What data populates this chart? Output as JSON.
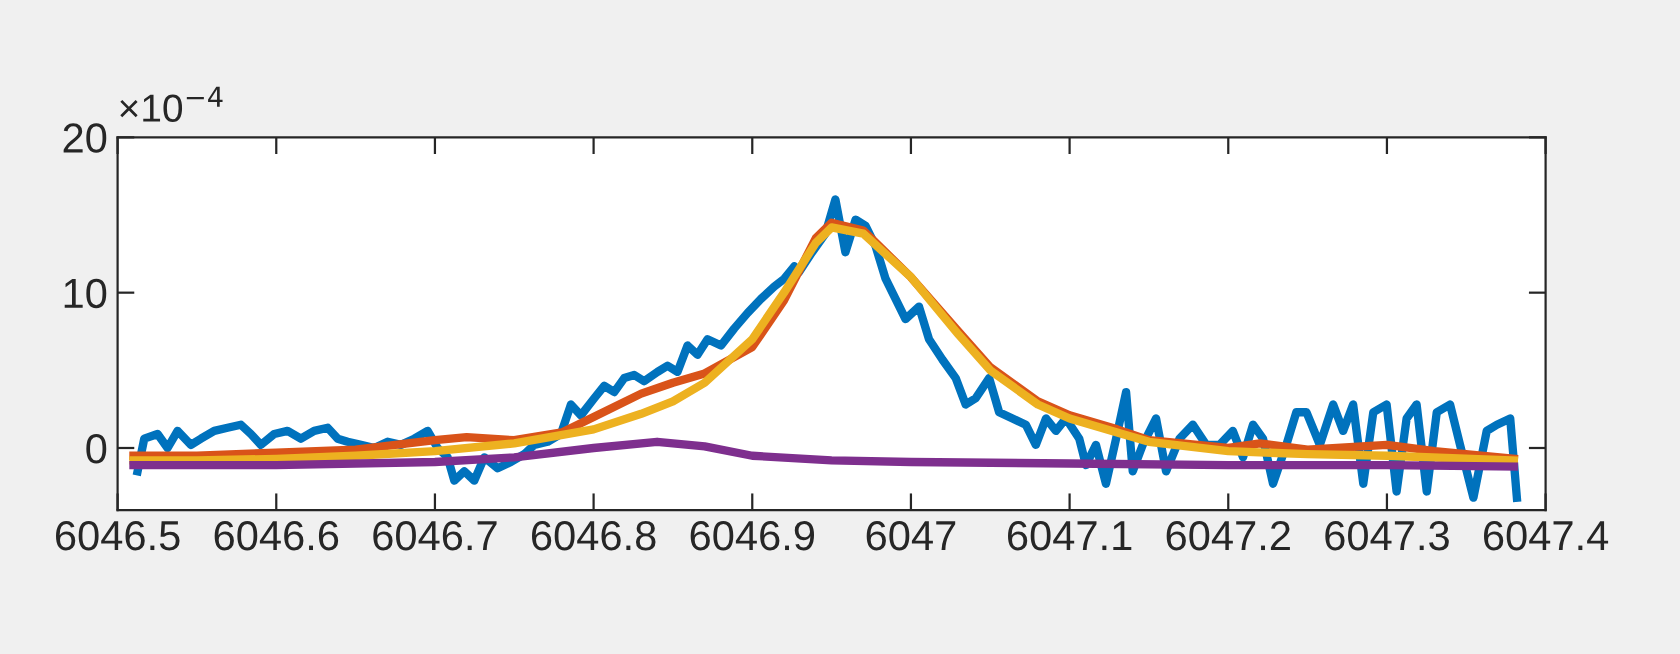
{
  "chart_data": {
    "type": "line",
    "annotations": [
      "×10$^{−4}$"
    ],
    "xlim": [
      6046.5,
      6047.4
    ],
    "xticks": [
      6046.5,
      6046.6,
      6046.7,
      6046.8,
      6046.9,
      6047,
      6047.1,
      6047.2,
      6047.3,
      6047.4
    ],
    "ylim": [
      -4,
      20
    ],
    "yticks": [
      0,
      10,
      20
    ],
    "grid": false,
    "legend": false,
    "line_style": "solid",
    "series": [
      {
        "color": "#0072bd",
        "x": [
          6046.5126,
          6046.5168,
          6046.5252,
          6046.5315,
          6046.5378,
          6046.5462,
          6046.5525,
          6046.5609,
          6046.5693,
          6046.5777,
          6046.584,
          6046.5903,
          6046.5987,
          6046.6071,
          6046.6155,
          6046.6239,
          6046.6324,
          6046.6387,
          6046.645,
          6046.6534,
          6046.6618,
          6046.6702,
          6046.6786,
          6046.687,
          6046.6954,
          6046.7017,
          6046.708,
          6046.7122,
          6046.7185,
          6046.7248,
          6046.7311,
          6046.7395,
          6046.7479,
          6046.7563,
          6046.7626,
          6046.771,
          6046.7794,
          6046.7857,
          6046.792,
          6046.8004,
          6046.8067,
          6046.813,
          6046.8193,
          6046.8256,
          6046.8319,
          6046.8403,
          6046.8466,
          6046.8529,
          6046.8592,
          6046.8655,
          6046.8718,
          6046.8803,
          6046.8887,
          6046.8971,
          6046.9055,
          6046.9139,
          6046.9202,
          6046.9265,
          6046.9293,
          6046.9377,
          6046.9461,
          6046.9524,
          6046.9587,
          6046.9651,
          6046.9714,
          6046.9777,
          6046.984,
          6046.9903,
          6046.9966,
          6047.0051,
          6047.0114,
          6047.0198,
          6047.0282,
          6047.0345,
          6047.0408,
          6047.0493,
          6047.0556,
          6047.064,
          6047.0724,
          6047.0787,
          6047.0851,
          6047.0914,
          6047.0977,
          6047.1061,
          6047.1103,
          6047.1166,
          6047.1229,
          6047.1293,
          6047.1356,
          6047.1398,
          6047.1461,
          6047.1545,
          6047.1608,
          6047.1693,
          6047.1777,
          6047.1861,
          6047.1945,
          6047.2029,
          6047.2093,
          6047.2156,
          6047.2219,
          6047.2282,
          6047.2366,
          6047.2429,
          6047.2493,
          6047.2577,
          6047.2661,
          6047.2724,
          6047.2787,
          6047.2851,
          6047.2914,
          6047.2998,
          6047.3061,
          6047.3124,
          6047.3187,
          6047.3251,
          6047.3314,
          6047.3398,
          6047.3461,
          6047.3545,
          6047.3629,
          6047.3693,
          6047.3777,
          6047.3819
        ],
        "values": [
          -1.5,
          0.6,
          0.9,
          0,
          1.1,
          0.2,
          0.6,
          1.1,
          1.3,
          1.5,
          0.9,
          0.2,
          0.9,
          1.1,
          0.6,
          1.1,
          1.3,
          0.6,
          0.4,
          0.2,
          0,
          0.4,
          0.2,
          0.6,
          1.1,
          0,
          -0.6,
          -2.1,
          -1.5,
          -2.1,
          -0.6,
          -1.3,
          -0.9,
          -0.4,
          0.2,
          0.4,
          0.9,
          2.8,
          2.1,
          3.2,
          4.0,
          3.6,
          4.5,
          4.7,
          4.3,
          4.9,
          5.3,
          4.9,
          6.6,
          6.0,
          7.0,
          6.6,
          7.7,
          8.7,
          9.6,
          10.4,
          10.9,
          11.7,
          11.3,
          12.6,
          13.8,
          16.0,
          12.6,
          14.7,
          14.3,
          13.0,
          10.9,
          9.6,
          8.3,
          9.1,
          7.0,
          5.7,
          4.5,
          2.8,
          3.2,
          4.5,
          2.3,
          1.9,
          1.5,
          0.2,
          1.9,
          1.1,
          1.9,
          0.6,
          -1.1,
          0.2,
          -2.3,
          0.6,
          3.6,
          -1.5,
          0.2,
          1.9,
          -1.5,
          0.6,
          1.5,
          0.2,
          0.2,
          1.1,
          -0.6,
          1.5,
          0.6,
          -2.3,
          0.2,
          2.3,
          2.3,
          0.2,
          2.8,
          1.1,
          2.8,
          -2.3,
          2.3,
          2.8,
          -2.8,
          1.9,
          2.8,
          -2.8,
          2.3,
          2.8,
          0.2,
          -3.2,
          1.1,
          1.5,
          1.9,
          -3.2
        ]
      },
      {
        "color": "#d95319",
        "x": [
          6046.51,
          6046.55,
          6046.6,
          6046.65,
          6046.7,
          6046.72,
          6046.75,
          6046.78,
          6046.8,
          6046.83,
          6046.85,
          6046.87,
          6046.9,
          6046.92,
          6046.94,
          6046.95,
          6046.97,
          6047.0,
          6047.03,
          6047.05,
          6047.08,
          6047.1,
          6047.13,
          6047.15,
          6047.2,
          6047.22,
          6047.25,
          6047.3,
          6047.33,
          6047.38
        ],
        "values": [
          -0.5,
          -0.5,
          -0.3,
          -0.1,
          0.5,
          0.7,
          0.5,
          1.0,
          2.0,
          3.5,
          4.2,
          4.8,
          6.5,
          9.5,
          13.5,
          14.5,
          14.0,
          11.0,
          7.5,
          5.2,
          3.0,
          2.1,
          1.2,
          0.5,
          0.0,
          0.3,
          -0.1,
          0.2,
          -0.2,
          -0.7
        ]
      },
      {
        "color": "#edb120",
        "x": [
          6046.51,
          6046.55,
          6046.6,
          6046.65,
          6046.7,
          6046.75,
          6046.8,
          6046.83,
          6046.85,
          6046.87,
          6046.9,
          6046.92,
          6046.94,
          6046.95,
          6046.97,
          6047.0,
          6047.03,
          6047.05,
          6047.08,
          6047.1,
          6047.13,
          6047.15,
          6047.2,
          6047.25,
          6047.3,
          6047.38
        ],
        "values": [
          -0.8,
          -0.8,
          -0.7,
          -0.5,
          -0.2,
          0.3,
          1.2,
          2.2,
          3.0,
          4.2,
          7.0,
          10.0,
          13.2,
          14.2,
          13.8,
          11.0,
          7.3,
          5.0,
          2.8,
          1.9,
          1.0,
          0.4,
          -0.2,
          -0.4,
          -0.5,
          -0.8
        ]
      },
      {
        "color": "#7e2f8e",
        "x": [
          6046.51,
          6046.6,
          6046.7,
          6046.75,
          6046.8,
          6046.84,
          6046.87,
          6046.9,
          6046.95,
          6047.0,
          6047.1,
          6047.2,
          6047.3,
          6047.38
        ],
        "values": [
          -1.1,
          -1.1,
          -0.9,
          -0.6,
          0.0,
          0.4,
          0.1,
          -0.5,
          -0.8,
          -0.9,
          -1.0,
          -1.1,
          -1.1,
          -1.2
        ]
      }
    ]
  }
}
